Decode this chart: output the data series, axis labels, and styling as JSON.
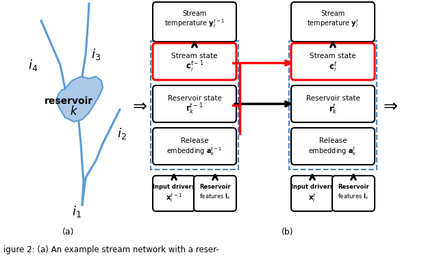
{
  "fig_width": 6.38,
  "fig_height": 3.76,
  "dpi": 100,
  "background_color": "#ffffff",
  "stream_color": "#5b9bd5",
  "reservoir_fill": "#adc8e8",
  "caption": "igure 2: (a) An example stream network with a reser-",
  "label_a": "(a)",
  "label_b": "(b)",
  "blue_dash": "#4a7fbf"
}
